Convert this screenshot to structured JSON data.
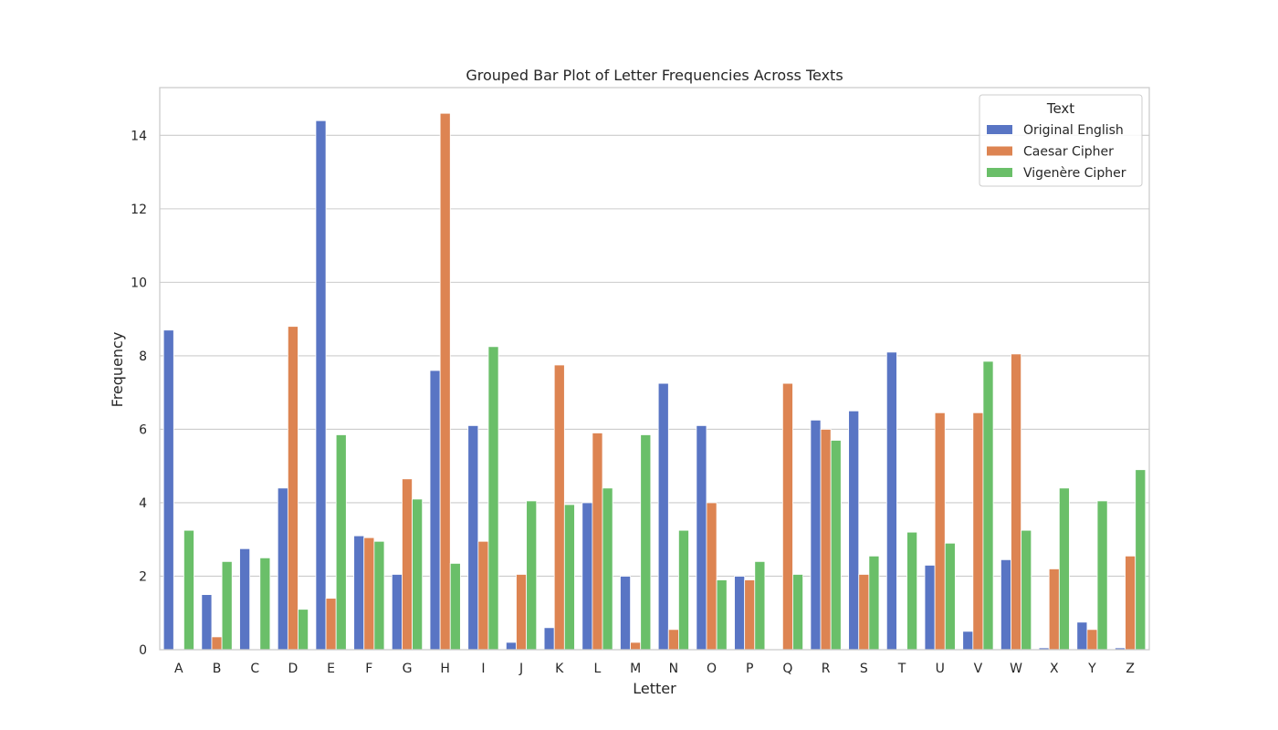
{
  "chart_data": {
    "type": "bar",
    "title": "Grouped Bar Plot of Letter Frequencies Across Texts",
    "xlabel": "Letter",
    "ylabel": "Frequency",
    "ylim": [
      0,
      15.3
    ],
    "yticks": [
      0,
      2,
      4,
      6,
      8,
      10,
      12,
      14
    ],
    "grid": true,
    "legend_title": "Text",
    "legend_position": "top-right",
    "categories": [
      "A",
      "B",
      "C",
      "D",
      "E",
      "F",
      "G",
      "H",
      "I",
      "J",
      "K",
      "L",
      "M",
      "N",
      "O",
      "P",
      "Q",
      "R",
      "S",
      "T",
      "U",
      "V",
      "W",
      "X",
      "Y",
      "Z"
    ],
    "series": [
      {
        "name": "Original English",
        "color": "#5975c4",
        "values": [
          8.7,
          1.5,
          2.75,
          4.4,
          14.4,
          3.1,
          2.05,
          7.6,
          6.1,
          0.2,
          0.6,
          4.0,
          2.0,
          7.25,
          6.1,
          2.0,
          0.0,
          6.25,
          6.5,
          8.1,
          2.3,
          0.5,
          2.45,
          0.05,
          0.75,
          0.05
        ]
      },
      {
        "name": "Caesar Cipher",
        "color": "#dd8452",
        "values": [
          0.0,
          0.35,
          0.0,
          8.8,
          1.4,
          3.05,
          4.65,
          14.6,
          2.95,
          2.05,
          7.75,
          5.9,
          0.2,
          0.55,
          4.0,
          1.9,
          7.25,
          6.0,
          2.05,
          0.0,
          6.45,
          6.45,
          8.05,
          2.2,
          0.55,
          2.55
        ]
      },
      {
        "name": "Vigenère Cipher",
        "color": "#6abf69",
        "values": [
          3.25,
          2.4,
          2.5,
          1.1,
          5.85,
          2.95,
          4.1,
          2.35,
          8.25,
          4.05,
          3.95,
          4.4,
          5.85,
          3.25,
          1.9,
          2.4,
          2.05,
          5.7,
          2.55,
          3.2,
          2.9,
          7.85,
          3.25,
          4.4,
          4.05,
          4.9
        ]
      }
    ]
  }
}
